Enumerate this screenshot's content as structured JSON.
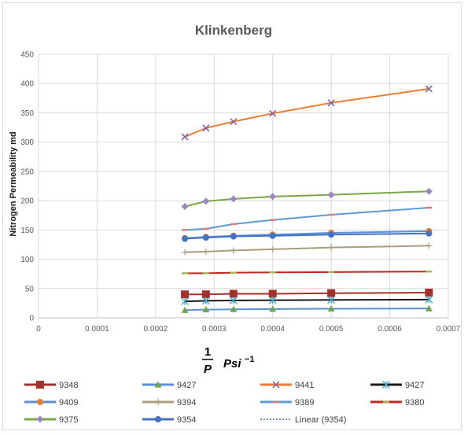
{
  "chart_data": {
    "type": "scatter",
    "title": "Klinkenberg",
    "xlabel_num": "1",
    "xlabel_den": "P",
    "xlabel_unit": "Psi",
    "xlabel_exp": "−1",
    "ylabel": "Nitrogen Permeability md",
    "xlim": [
      0,
      0.0007
    ],
    "ylim": [
      0,
      450
    ],
    "x_ticks": [
      "0",
      "0.0001",
      "0.0002",
      "0.0003",
      "0.0004",
      "0.0005",
      "0.0006",
      "0.0007"
    ],
    "y_ticks": [
      "0",
      "50",
      "100",
      "150",
      "200",
      "250",
      "300",
      "350",
      "400",
      "450"
    ],
    "grid": true,
    "legend_position": "bottom",
    "x": [
      0.00025,
      0.000286,
      0.000333,
      0.0004,
      0.0005,
      0.000667
    ],
    "series": [
      {
        "name": "9348",
        "color": "#a5302a",
        "marker": "square",
        "values": [
          40,
          40,
          41,
          41,
          42,
          43
        ]
      },
      {
        "name": "9427",
        "color": "#6aa84f",
        "marker": "triangle",
        "line_color": "#5b8fd6",
        "values": [
          13,
          14,
          14.5,
          15,
          15.5,
          16
        ]
      },
      {
        "name": "9441",
        "color": "#ed7d31",
        "marker": "x",
        "marker_color": "#7b5fa8",
        "values": [
          309,
          324,
          335,
          349,
          367,
          391
        ]
      },
      {
        "name": "9427",
        "color": "#1a1a1a",
        "marker": "star",
        "marker_color": "#4bacc6",
        "values": [
          28,
          29,
          29.5,
          30,
          30.5,
          31
        ]
      },
      {
        "name": "9409",
        "color": "#ed7d31",
        "marker": "circle",
        "line_color": "#5b8fd6",
        "values": [
          136,
          138,
          140,
          142,
          145,
          148
        ]
      },
      {
        "name": "9394",
        "color": "#a89e7e",
        "marker": "plus",
        "values": [
          112,
          113,
          115,
          117,
          120,
          123
        ]
      },
      {
        "name": "9389",
        "color": "#5b9bd5",
        "marker": "dash",
        "marker_color": "#e07b7b",
        "values": [
          150,
          152,
          160,
          167,
          176,
          188
        ]
      },
      {
        "name": "9380",
        "color": "#c0281f",
        "marker": "dash",
        "marker_color": "#9bbb59",
        "values": [
          76,
          76,
          77,
          77.5,
          78,
          79
        ]
      },
      {
        "name": "9375",
        "color": "#77a843",
        "marker": "diamond",
        "marker_color": "#9b86c2",
        "values": [
          190,
          199,
          203,
          207,
          210,
          216
        ]
      },
      {
        "name": "9354",
        "color": "#4472c4",
        "marker": "circle",
        "values": [
          135,
          137,
          139,
          140,
          142,
          144
        ]
      }
    ],
    "legend": [
      {
        "label": "9348"
      },
      {
        "label": "9427"
      },
      {
        "label": "9441"
      },
      {
        "label": "9427"
      },
      {
        "label": "9409"
      },
      {
        "label": "9394"
      },
      {
        "label": "9389"
      },
      {
        "label": "9380"
      },
      {
        "label": "9375"
      },
      {
        "label": "9354"
      },
      {
        "label": "Linear (9354)"
      }
    ]
  }
}
